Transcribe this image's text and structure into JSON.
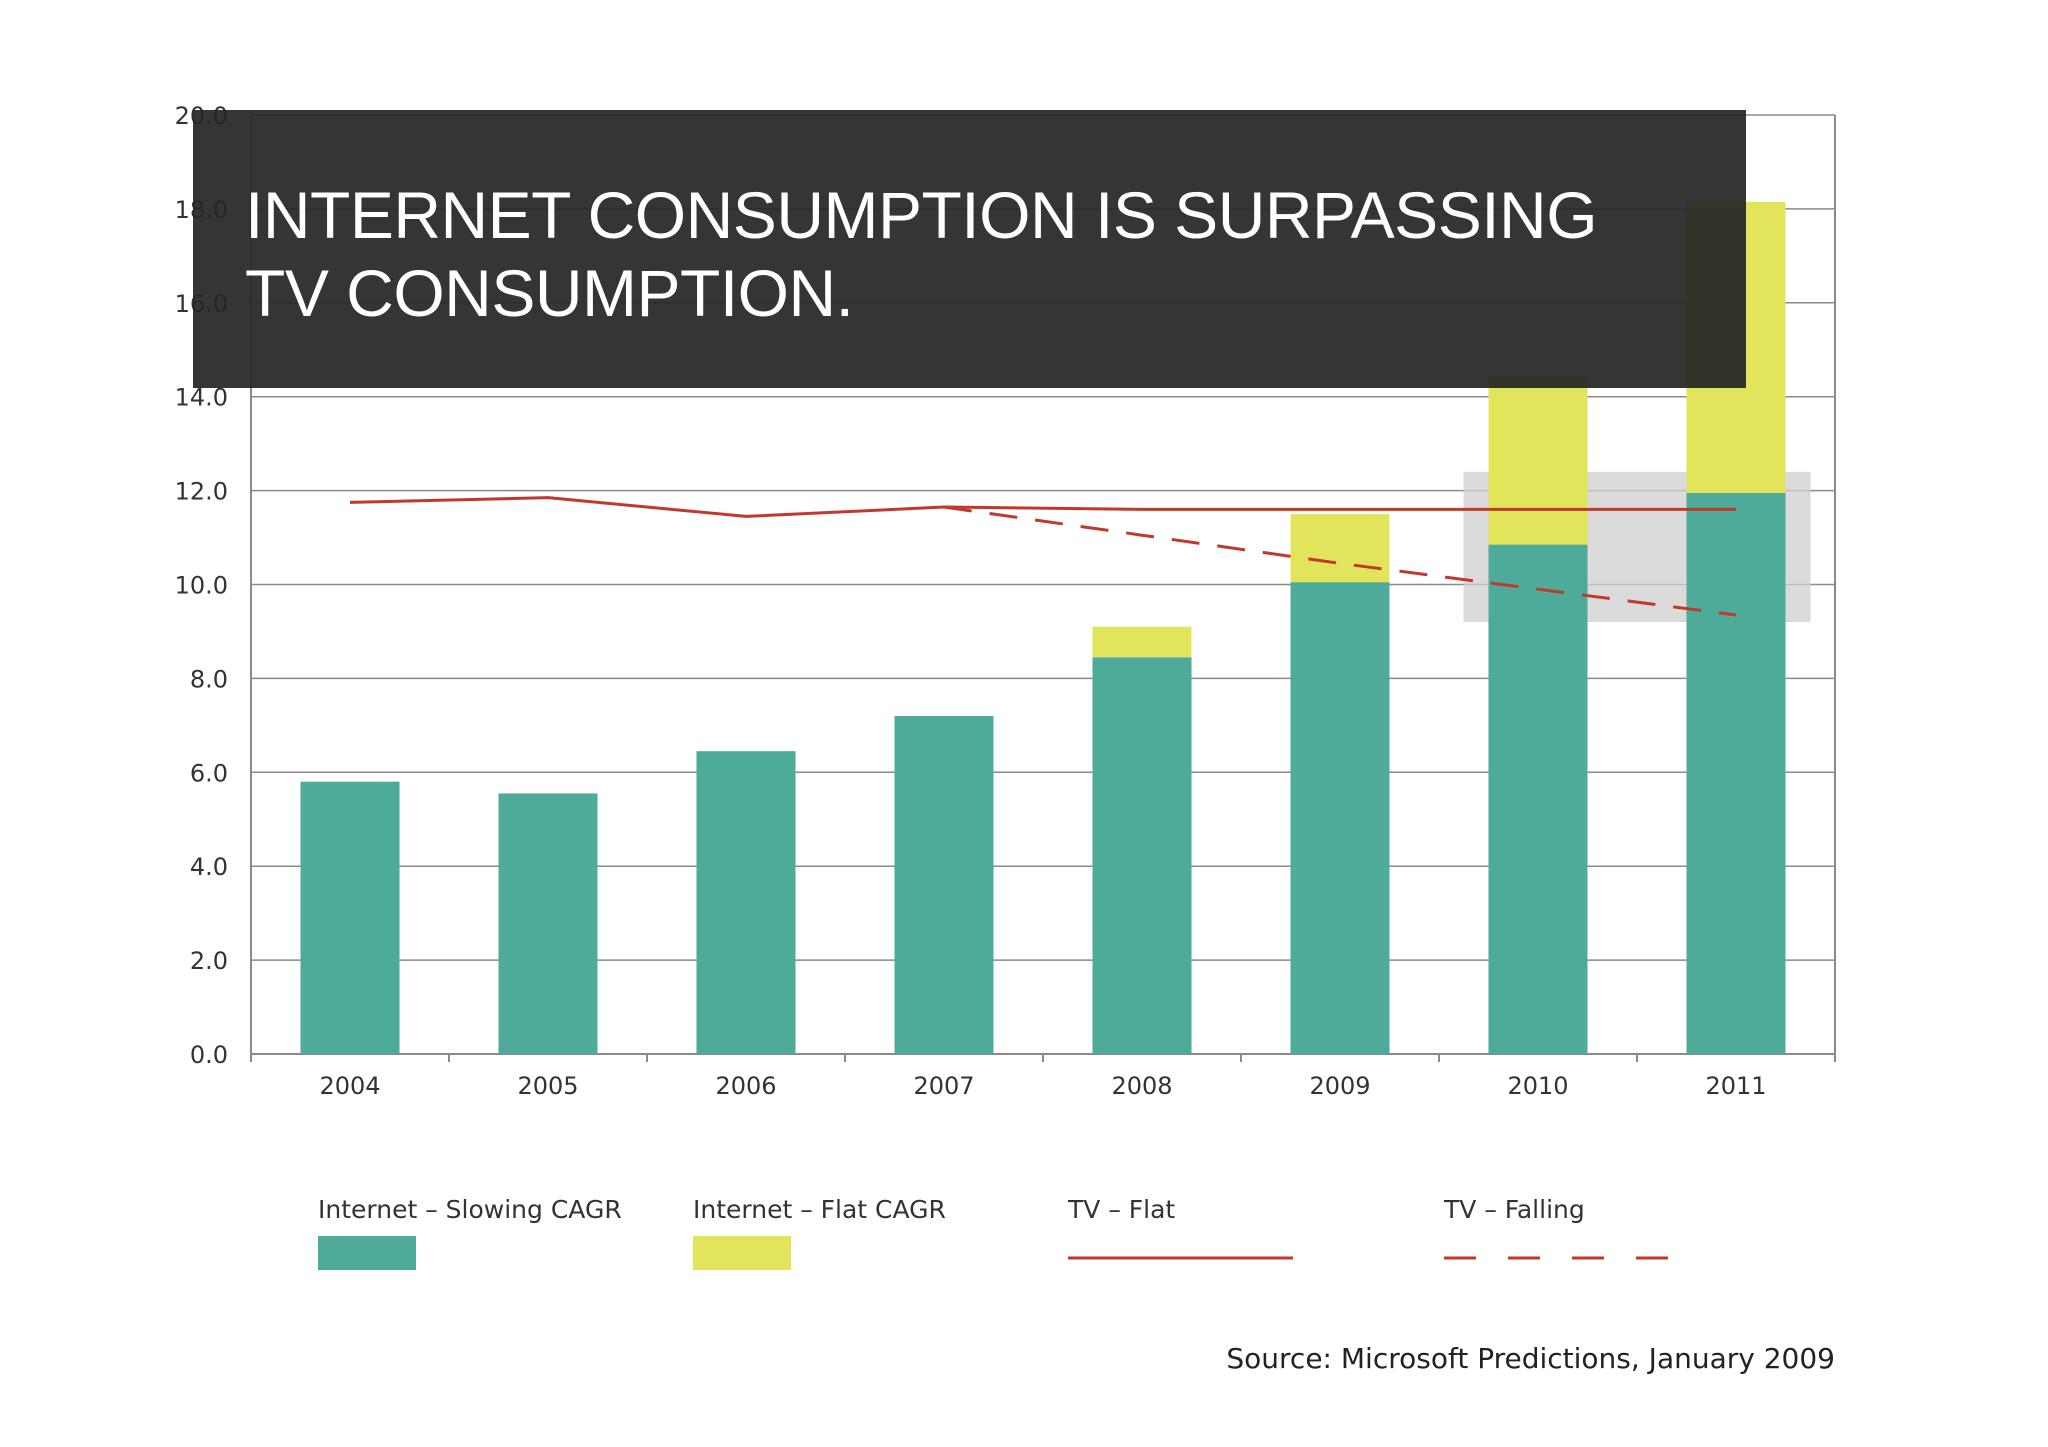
{
  "title": "INTERNET CONSUMPTION IS SURPASSING TV CONSUMPTION.",
  "source": "Source: Microsoft Predictions, January 2009",
  "colors": {
    "internet_slowing": "#4fab99",
    "internet_flat": "#e2e55c",
    "tv": "#c0392b",
    "grid": "#8a8a8a",
    "highlight": "#cfcfcf"
  },
  "chart_data": {
    "type": "bar",
    "stacked": true,
    "title": "INTERNET CONSUMPTION IS SURPASSING TV CONSUMPTION.",
    "xlabel": "",
    "ylabel": "",
    "ylim": [
      0,
      20
    ],
    "y_ticks": [
      "0.0",
      "2.0",
      "4.0",
      "6.0",
      "8.0",
      "10.0",
      "12.0",
      "14.0",
      "16.0",
      "18.0",
      "20.0"
    ],
    "y_tick_values": [
      0,
      2,
      4,
      6,
      8,
      10,
      12,
      14,
      16,
      18,
      20
    ],
    "categories": [
      "2004",
      "2005",
      "2006",
      "2007",
      "2008",
      "2009",
      "2010",
      "2011"
    ],
    "series": [
      {
        "name": "Internet – Slowing CAGR",
        "kind": "bar",
        "values": [
          5.8,
          5.55,
          6.45,
          7.2,
          8.45,
          10.05,
          10.85,
          11.95
        ]
      },
      {
        "name": "Internet – Flat CAGR",
        "kind": "bar-stack",
        "values": [
          0,
          0,
          0,
          0,
          0.65,
          1.45,
          3.6,
          6.2
        ]
      },
      {
        "name": "TV – Flat",
        "kind": "line",
        "values": [
          11.75,
          11.85,
          11.45,
          11.65,
          11.6,
          11.6,
          11.6,
          11.6
        ]
      },
      {
        "name": "TV – Falling",
        "kind": "dashed-line",
        "values": [
          null,
          null,
          null,
          11.65,
          11.05,
          10.45,
          9.9,
          9.35
        ]
      }
    ],
    "legend": [
      {
        "label": "Internet – Slowing CAGR",
        "symbol": "swatch",
        "series": 0
      },
      {
        "label": "Internet – Flat CAGR",
        "symbol": "swatch",
        "series": 1
      },
      {
        "label": "TV – Flat",
        "symbol": "line",
        "series": 2
      },
      {
        "label": "TV – Falling",
        "symbol": "dashed-line",
        "series": 3
      }
    ],
    "legend_position": "bottom",
    "grid": true,
    "highlight_region": {
      "x_from": "2010",
      "x_to": "2011",
      "y_from": 9.2,
      "y_to": 12.4
    }
  }
}
